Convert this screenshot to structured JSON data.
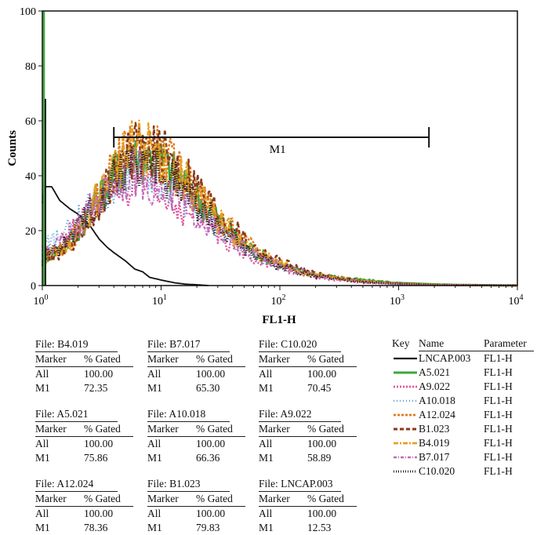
{
  "chart_data": {
    "type": "line",
    "title": "",
    "xlabel": "FL1-H",
    "ylabel": "Counts",
    "x_scale": "log",
    "xlim": [
      1,
      10000
    ],
    "ylim": [
      0,
      100
    ],
    "y_ticks": [
      0,
      20,
      40,
      60,
      80,
      100
    ],
    "x_ticks": [
      {
        "base": "10",
        "exp": "0"
      },
      {
        "base": "10",
        "exp": "1"
      },
      {
        "base": "10",
        "exp": "2"
      },
      {
        "base": "10",
        "exp": "3"
      },
      {
        "base": "10",
        "exp": "4"
      }
    ],
    "marker": {
      "label": "M1",
      "x_start": 4,
      "x_end": 1800,
      "y": 54
    },
    "grid": false,
    "series": [
      {
        "name": "LNCAP.003",
        "color": "#111111",
        "dash": "",
        "width": 1.8,
        "x": [
          1,
          1.05,
          1.2,
          1.4,
          1.7,
          2,
          2.5,
          3,
          3.5,
          4,
          5,
          6,
          7,
          8,
          10,
          13,
          16,
          20,
          25
        ],
        "y": [
          30,
          36,
          36,
          31,
          28,
          26,
          22,
          17,
          14,
          12,
          9,
          6,
          5,
          3,
          2,
          1,
          0.5,
          0.3,
          0
        ]
      },
      {
        "name": "A5.021",
        "color": "#3aa83a",
        "dash": "",
        "width": 2.6,
        "x": [
          1,
          1.5,
          2,
          3,
          4,
          5,
          6,
          7,
          8,
          10,
          15,
          20,
          30,
          50,
          70,
          100,
          150,
          200,
          300,
          500,
          700,
          1000,
          2000,
          3000,
          5000,
          10000
        ],
        "y": [
          10,
          14,
          20,
          32,
          40,
          44,
          46,
          47,
          47,
          45,
          38,
          32,
          24,
          15,
          11,
          8,
          5,
          4,
          3,
          2,
          1.5,
          1,
          0.5,
          0.3,
          0.2,
          0.1
        ]
      },
      {
        "name": "A9.022",
        "color": "#e0559c",
        "dash": "2,2",
        "width": 2.4,
        "x": [
          1,
          1.5,
          2,
          3,
          4,
          5,
          6,
          7,
          8,
          10,
          15,
          20,
          30,
          50,
          70,
          100,
          150,
          200,
          300,
          500,
          1000,
          2000,
          5000,
          10000
        ],
        "y": [
          12,
          16,
          22,
          30,
          34,
          36,
          36,
          35,
          34,
          32,
          28,
          25,
          19,
          12,
          9,
          7,
          4,
          3,
          2,
          1,
          0.5,
          0.2,
          0.1,
          0
        ]
      },
      {
        "name": "A10.018",
        "color": "#5aa0d8",
        "dash": "1,3",
        "width": 2.2,
        "x": [
          1,
          1.5,
          2,
          3,
          4,
          5,
          6,
          7,
          8,
          10,
          15,
          20,
          30,
          50,
          70,
          100,
          150,
          200,
          300,
          500,
          1000,
          2000,
          5000,
          10000
        ],
        "y": [
          14,
          18,
          24,
          32,
          38,
          41,
          42,
          42,
          41,
          39,
          33,
          28,
          21,
          13,
          10,
          7,
          5,
          4,
          3,
          1.5,
          0.7,
          0.3,
          0.1,
          0
        ]
      },
      {
        "name": "A12.024",
        "color": "#e07b1f",
        "dash": "3,2",
        "width": 2.4,
        "x": [
          1,
          1.5,
          2,
          3,
          4,
          5,
          6,
          7,
          8,
          10,
          15,
          20,
          30,
          50,
          70,
          100,
          150,
          200,
          300,
          500,
          1000,
          2000,
          5000,
          10000
        ],
        "y": [
          10,
          13,
          19,
          32,
          42,
          47,
          49,
          50,
          49,
          47,
          40,
          34,
          25,
          16,
          12,
          8,
          5,
          4,
          3,
          1.5,
          0.8,
          0.3,
          0.1,
          0
        ]
      },
      {
        "name": "B1.023",
        "color": "#8a3a1c",
        "dash": "5,3",
        "width": 2.6,
        "x": [
          1,
          1.5,
          2,
          3,
          4,
          5,
          6,
          7,
          8,
          10,
          15,
          20,
          30,
          50,
          70,
          100,
          150,
          200,
          300,
          500,
          1000,
          2000,
          5000,
          10000
        ],
        "y": [
          9,
          13,
          18,
          30,
          40,
          46,
          49,
          50,
          50,
          48,
          42,
          36,
          27,
          17,
          12,
          9,
          6,
          4,
          3,
          1.5,
          0.8,
          0.3,
          0.1,
          0
        ]
      },
      {
        "name": "B4.019",
        "color": "#e8a020",
        "dash": "6,2,2,2",
        "width": 2.4,
        "x": [
          1,
          1.5,
          2,
          3,
          4,
          5,
          6,
          7,
          8,
          10,
          15,
          20,
          30,
          50,
          70,
          100,
          150,
          200,
          300,
          500,
          1000,
          2000,
          5000,
          10000
        ],
        "y": [
          11,
          14,
          20,
          33,
          43,
          48,
          50,
          51,
          50,
          47,
          39,
          33,
          24,
          15,
          11,
          8,
          5,
          4,
          2.5,
          1.5,
          0.7,
          0.3,
          0.1,
          0
        ]
      },
      {
        "name": "B7.017",
        "color": "#c06ab8",
        "dash": "4,2,1,2",
        "width": 2.2,
        "x": [
          1,
          1.5,
          2,
          3,
          4,
          5,
          6,
          7,
          8,
          10,
          15,
          20,
          30,
          50,
          70,
          100,
          150,
          200,
          300,
          500,
          1000,
          2000,
          5000,
          10000
        ],
        "y": [
          12,
          16,
          22,
          32,
          38,
          40,
          41,
          40,
          38,
          35,
          30,
          26,
          20,
          13,
          10,
          7,
          5,
          3.5,
          2.5,
          1.2,
          0.6,
          0.2,
          0.1,
          0
        ]
      },
      {
        "name": "C10.020",
        "color": "#222222",
        "dash": "1,2",
        "width": 2.8,
        "x": [
          1,
          1.5,
          2,
          3,
          4,
          5,
          6,
          7,
          8,
          10,
          15,
          20,
          30,
          50,
          70,
          100,
          150,
          200,
          300,
          500,
          1000,
          2000,
          5000,
          10000
        ],
        "y": [
          11,
          15,
          21,
          32,
          40,
          44,
          45,
          45,
          44,
          41,
          35,
          30,
          22,
          14,
          10,
          7,
          5,
          3.5,
          2.5,
          1.3,
          0.6,
          0.2,
          0.1,
          0
        ]
      }
    ]
  },
  "stats": [
    {
      "file": "File: B4.019",
      "marker_label": "Marker",
      "gated_label": "% Gated",
      "all_label": "All",
      "all_value": "100.00",
      "m1_label": "M1",
      "m1_value": "72.35"
    },
    {
      "file": "File: B7.017",
      "marker_label": "Marker",
      "gated_label": "% Gated",
      "all_label": "All",
      "all_value": "100.00",
      "m1_label": "M1",
      "m1_value": "65.30"
    },
    {
      "file": "File: C10.020",
      "marker_label": "Marker",
      "gated_label": "% Gated",
      "all_label": "All",
      "all_value": "100.00",
      "m1_label": "M1",
      "m1_value": "70.45"
    },
    {
      "file": "File: A5.021",
      "marker_label": "Marker",
      "gated_label": "% Gated",
      "all_label": "All",
      "all_value": "100.00",
      "m1_label": "M1",
      "m1_value": "75.86"
    },
    {
      "file": "File: A10.018",
      "marker_label": "Marker",
      "gated_label": "% Gated",
      "all_label": "All",
      "all_value": "100.00",
      "m1_label": "M1",
      "m1_value": "66.36"
    },
    {
      "file": "File: A9.022",
      "marker_label": "Marker",
      "gated_label": "% Gated",
      "all_label": "All",
      "all_value": "100.00",
      "m1_label": "M1",
      "m1_value": "58.89"
    },
    {
      "file": "File: A12.024",
      "marker_label": "Marker",
      "gated_label": "% Gated",
      "all_label": "All",
      "all_value": "100.00",
      "m1_label": "M1",
      "m1_value": "78.36"
    },
    {
      "file": "File: B1.023",
      "marker_label": "Marker",
      "gated_label": "% Gated",
      "all_label": "All",
      "all_value": "100.00",
      "m1_label": "M1",
      "m1_value": "79.83"
    },
    {
      "file": "File: LNCAP.003",
      "marker_label": "Marker",
      "gated_label": "% Gated",
      "all_label": "All",
      "all_value": "100.00",
      "m1_label": "M1",
      "m1_value": "12.53"
    }
  ],
  "key_table": {
    "key_header": "Key",
    "name_header": "Name",
    "param_header": "Parameter",
    "rows": [
      {
        "name": "LNCAP.003",
        "param": "FL1-H"
      },
      {
        "name": "A5.021",
        "param": "FL1-H"
      },
      {
        "name": "A9.022",
        "param": "FL1-H"
      },
      {
        "name": "A10.018",
        "param": "FL1-H"
      },
      {
        "name": "A12.024",
        "param": "FL1-H"
      },
      {
        "name": "B1.023",
        "param": "FL1-H"
      },
      {
        "name": "B4.019",
        "param": "FL1-H"
      },
      {
        "name": "B7.017",
        "param": "FL1-H"
      },
      {
        "name": "C10.020",
        "param": "FL1-H"
      }
    ]
  }
}
